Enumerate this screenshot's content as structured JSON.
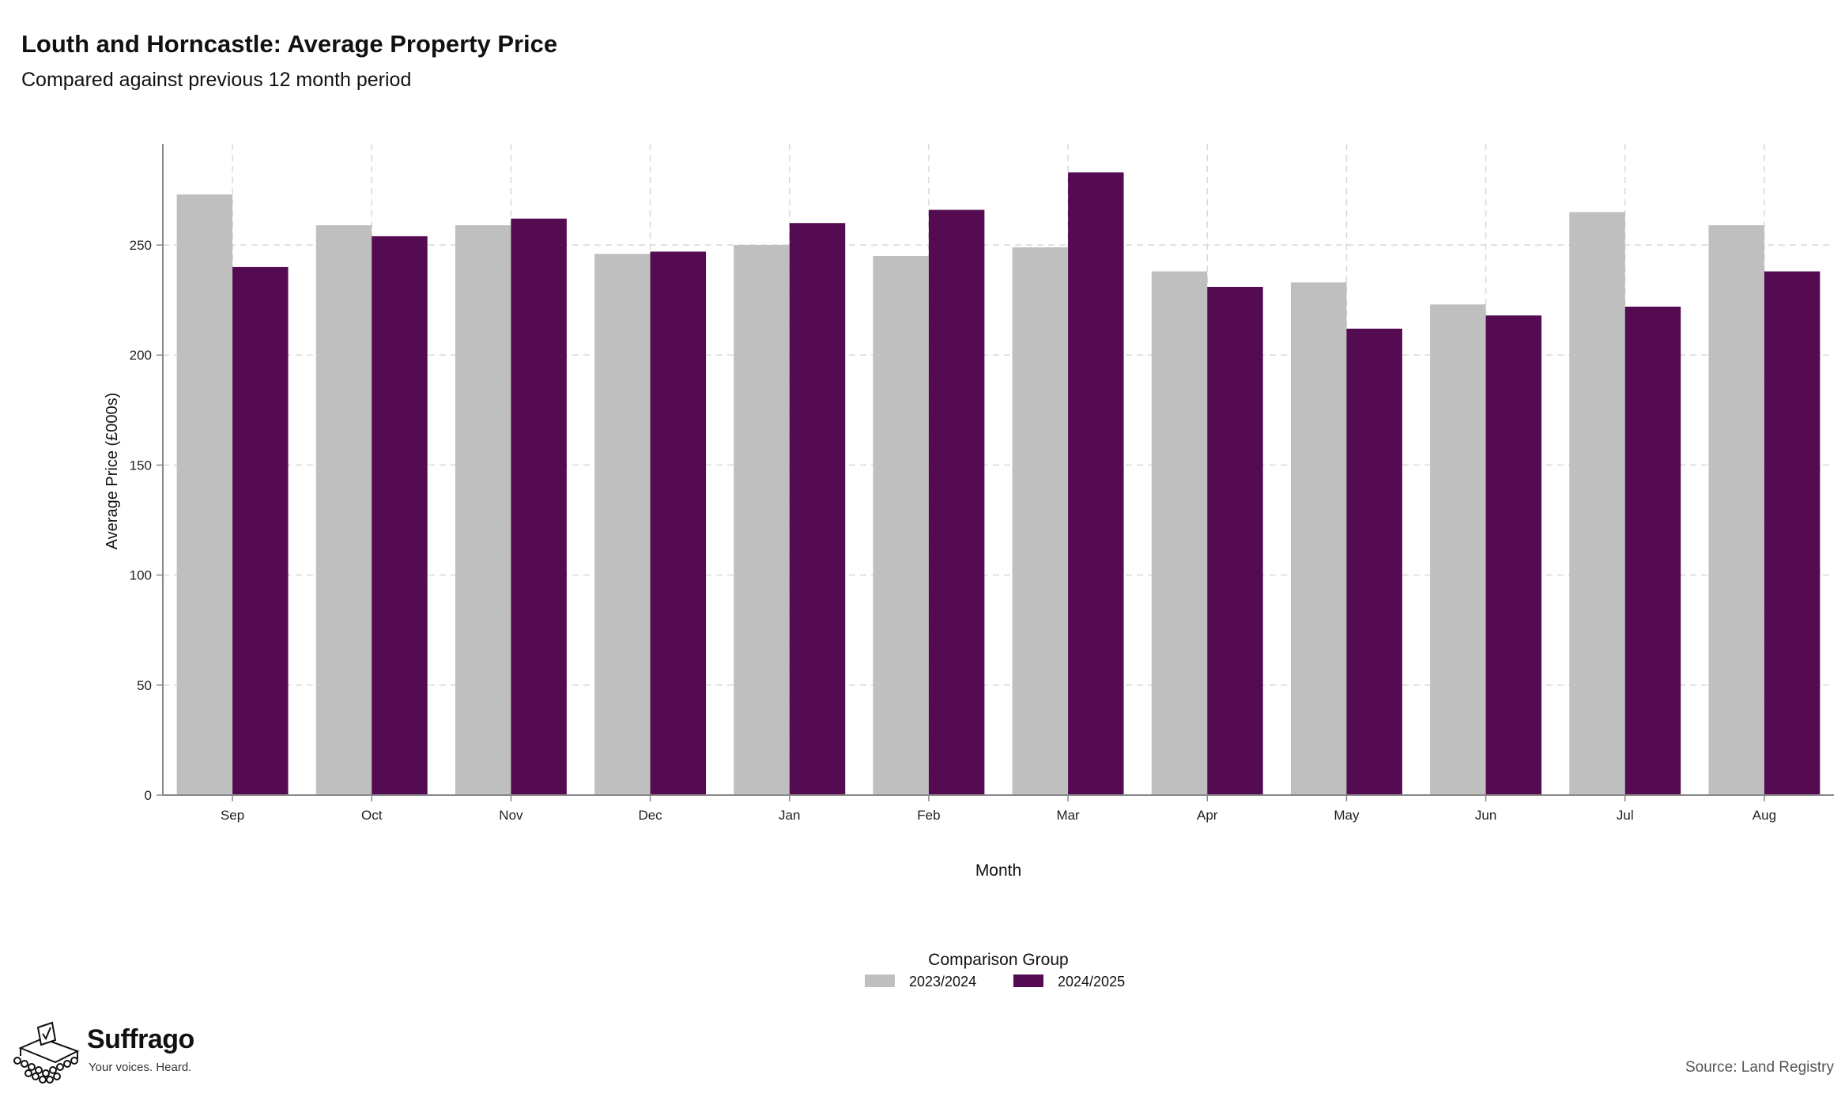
{
  "header": {
    "title": "Louth and Horncastle: Average Property Price",
    "subtitle": "Compared against previous 12 month period"
  },
  "footer": {
    "source": "Source: Land Registry",
    "brand_name": "Suffrago",
    "brand_tagline": "Your voices. Heard."
  },
  "chart_data": {
    "type": "bar",
    "title": "Louth and Horncastle: Average Property Price",
    "subtitle": "Compared against previous 12 month period",
    "xlabel": "Month",
    "ylabel": "Average Price (£000s)",
    "ylim": [
      0,
      296
    ],
    "yticks": [
      0,
      50,
      100,
      150,
      200,
      250
    ],
    "grid": true,
    "legend": {
      "title": "Comparison Group",
      "position": "bottom-center"
    },
    "categories": [
      "Sep",
      "Oct",
      "Nov",
      "Dec",
      "Jan",
      "Feb",
      "Mar",
      "Apr",
      "May",
      "Jun",
      "Jul",
      "Aug"
    ],
    "series": [
      {
        "name": "2023/2024",
        "color": "#bfbfbf",
        "values": [
          273,
          259,
          259,
          246,
          250,
          245,
          249,
          238,
          233,
          223,
          265,
          259
        ]
      },
      {
        "name": "2024/2025",
        "color": "#540b51",
        "values": [
          240,
          254,
          262,
          247,
          260,
          266,
          283,
          231,
          212,
          218,
          222,
          238
        ]
      }
    ]
  }
}
